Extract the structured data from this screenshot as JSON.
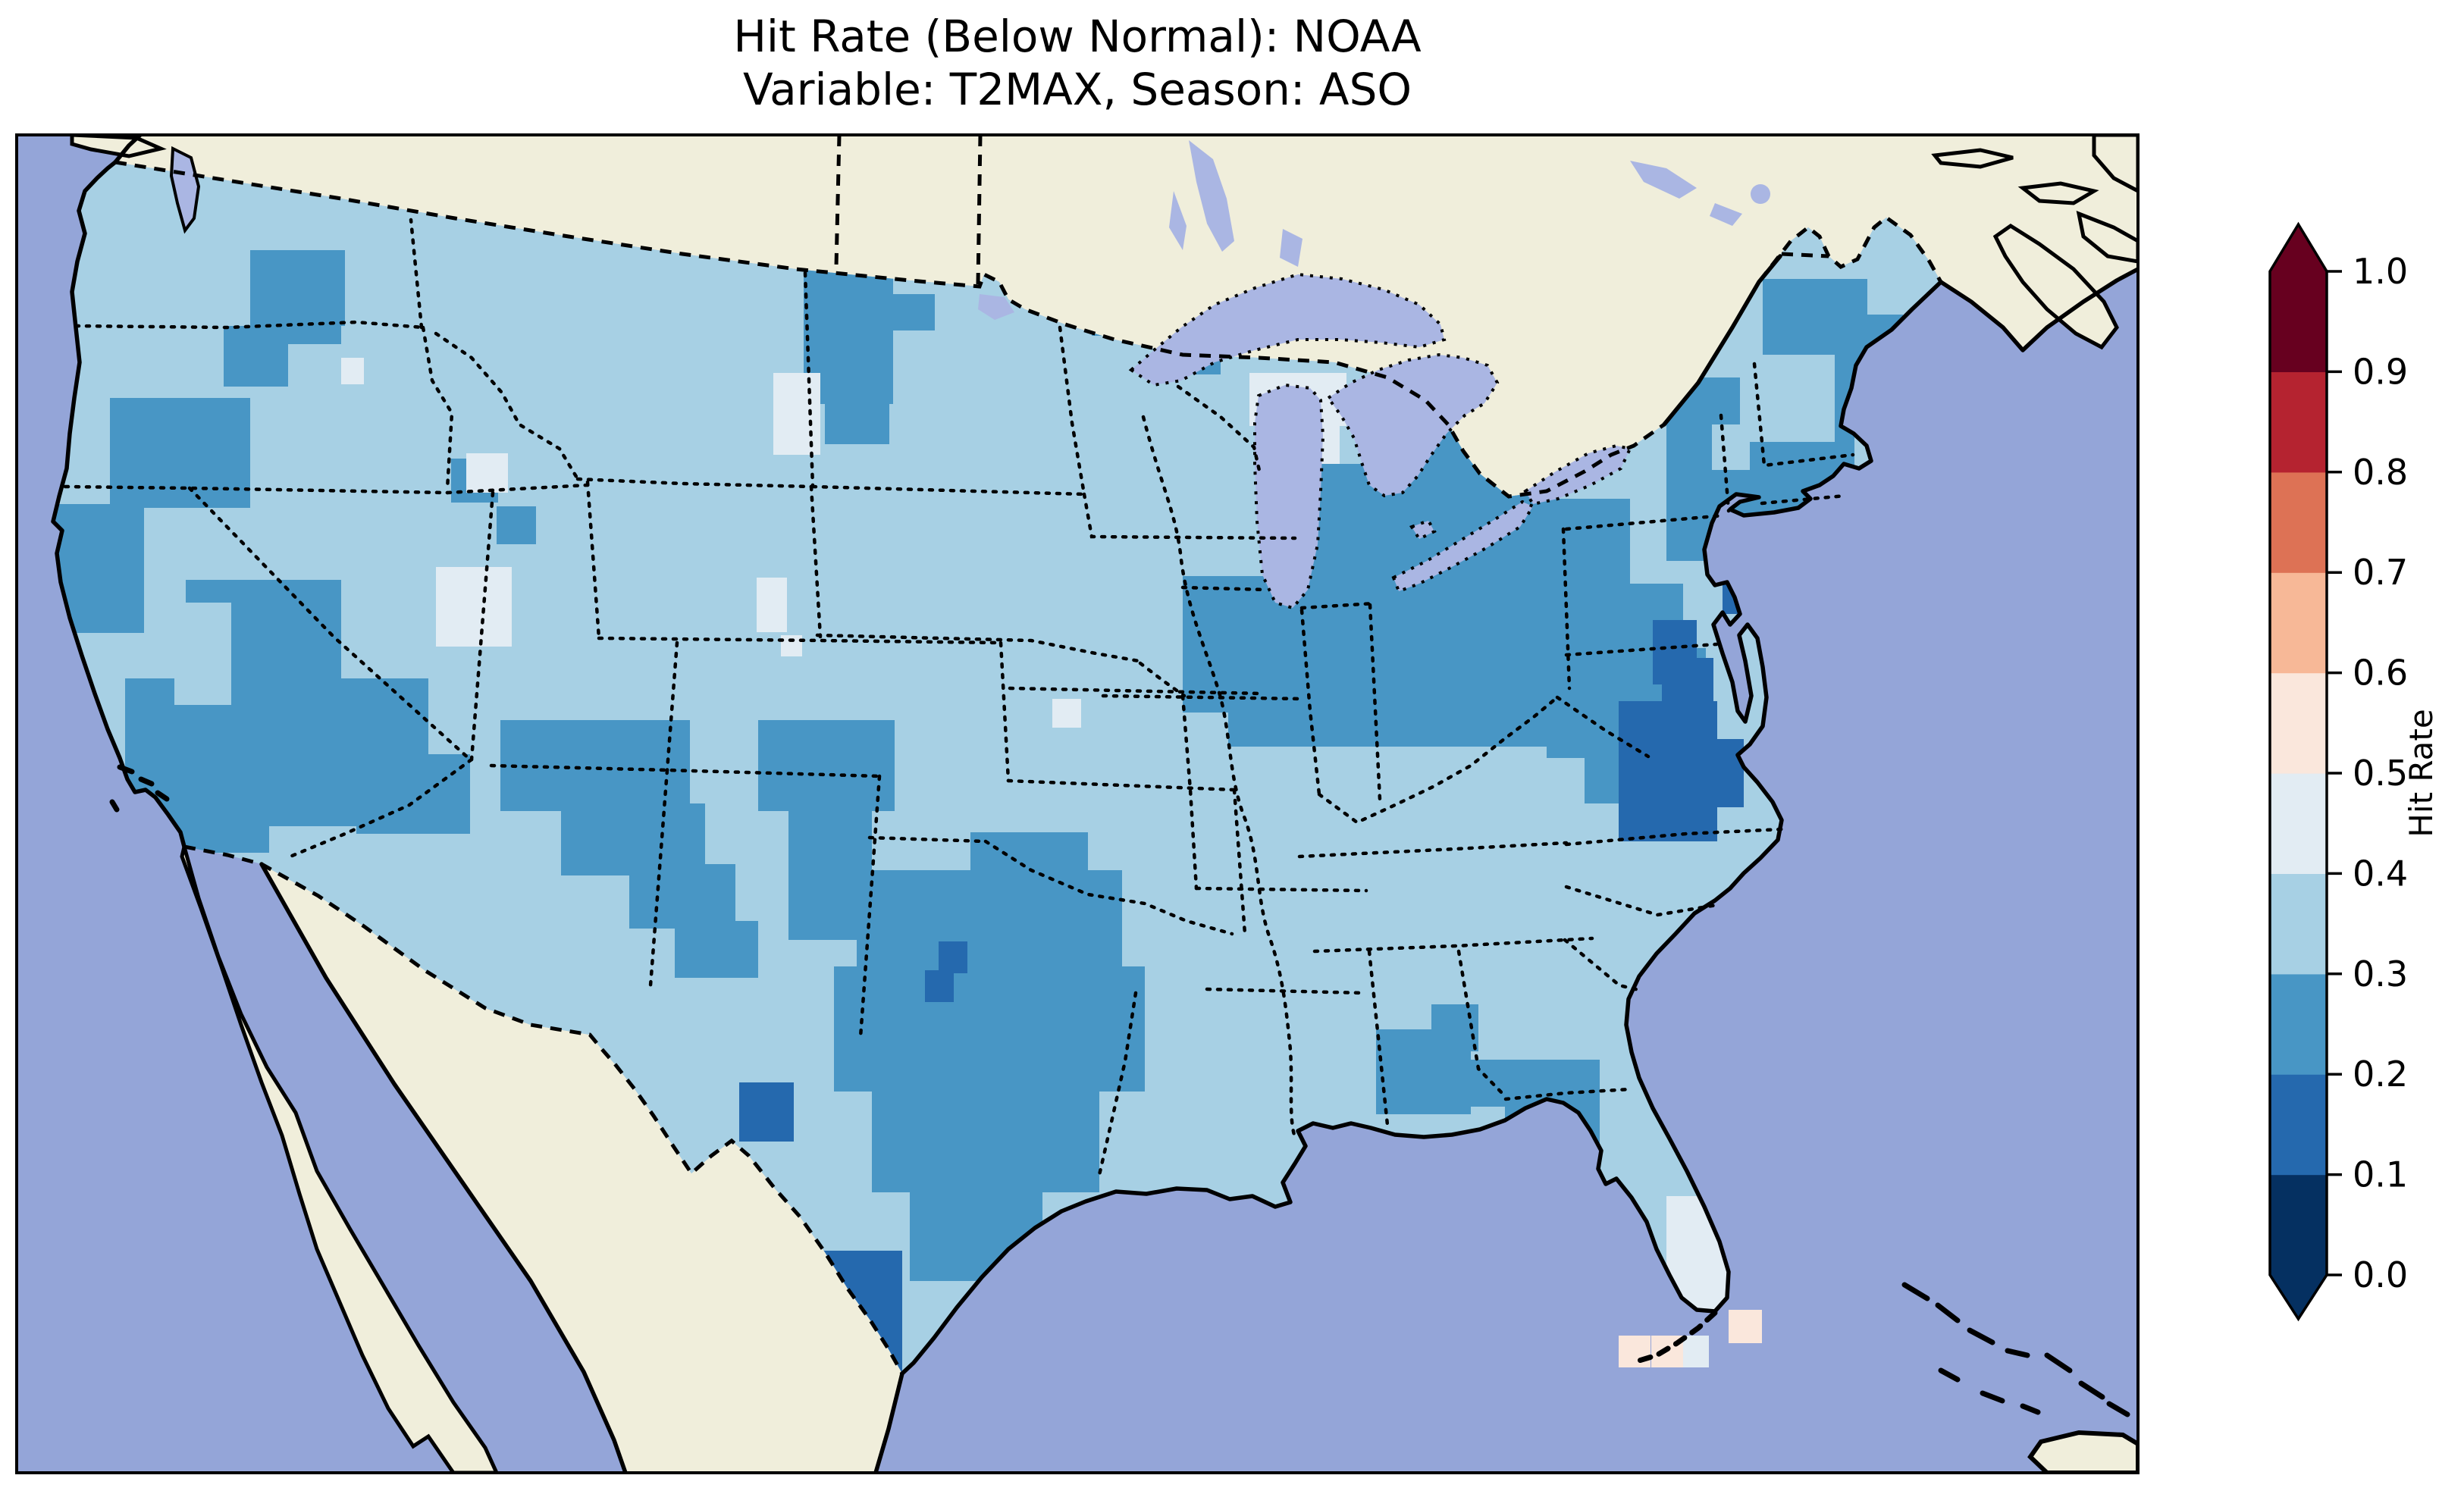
{
  "figure": {
    "title_line1": "Hit Rate (Below Normal): NOAA",
    "title_line2": "Variable: T2MAX, Season: ASO",
    "background": "#ffffff"
  },
  "map": {
    "colors": {
      "ocean": "#94a5d8",
      "lake": "#aab6e3",
      "foreign_land": "#f0eedb",
      "coastline": "#000000",
      "frame": "#000000",
      "base_us_bin": "#a7d0e4"
    }
  },
  "colorbar": {
    "label": "Hit Rate",
    "ticks": [
      "1.0",
      "0.9",
      "0.8",
      "0.7",
      "0.6",
      "0.5",
      "0.4",
      "0.3",
      "0.2",
      "0.1",
      "0.0"
    ],
    "extend": "both"
  },
  "chart_data": {
    "type": "heatmap",
    "subtype": "choropleth-map-conus",
    "title": "Hit Rate (Below Normal): NOAA",
    "subtitle": "Variable: T2MAX, Season: ASO",
    "metric": "Hit Rate (Below Normal)",
    "source": "NOAA",
    "variable": "T2MAX",
    "season": "ASO",
    "colorbar_label": "Hit Rate",
    "value_range": [
      0.0,
      1.0
    ],
    "colormap": {
      "name": "RdBu_r (10 discrete bins, extend both)",
      "levels": [
        0.0,
        0.1,
        0.2,
        0.3,
        0.4,
        0.5,
        0.6,
        0.7,
        0.8,
        0.9,
        1.0
      ],
      "bins": [
        {
          "range": "0.0-0.1",
          "color": "#053061"
        },
        {
          "range": "0.1-0.2",
          "color": "#2569ae"
        },
        {
          "range": "0.2-0.3",
          "color": "#4896c5"
        },
        {
          "range": "0.3-0.4",
          "color": "#a7d0e4"
        },
        {
          "range": "0.4-0.5",
          "color": "#e2ecf3"
        },
        {
          "range": "0.5-0.6",
          "color": "#fae7dc"
        },
        {
          "range": "0.6-0.7",
          "color": "#f7b897"
        },
        {
          "range": "0.7-0.8",
          "color": "#dd7255"
        },
        {
          "range": "0.8-0.9",
          "color": "#b52330"
        },
        {
          "range": "0.9-1.0",
          "color": "#67001f"
        }
      ],
      "under_color": "#053061",
      "over_color": "#67001f"
    },
    "region_values": [
      {
        "region": "Most of CONUS (base)",
        "hit_rate": "0.3-0.4"
      },
      {
        "region": "NE Washington / Idaho panhandle",
        "hit_rate": "0.2-0.3"
      },
      {
        "region": "SW Oregon / Northern California",
        "hit_rate": "0.2-0.3"
      },
      {
        "region": "Central & Southern California, S Nevada",
        "hit_rate": "0.2-0.3"
      },
      {
        "region": "Utah-Arizona border region",
        "hit_rate": "0.2-0.3"
      },
      {
        "region": "NE New Mexico / SE Colorado",
        "hit_rate": "0.2-0.3"
      },
      {
        "region": "Eastern Montana / W North Dakota",
        "hit_rate": "0.2-0.3"
      },
      {
        "region": "Great Plains (NE, KS, IA, MO)",
        "hit_rate": "0.3-0.4"
      },
      {
        "region": "Central & South Texas, S Oklahoma",
        "hit_rate": "0.2-0.3"
      },
      {
        "region": "Rio Grande Valley (S Texas tip), Big Bend",
        "hit_rate": "0.1-0.2"
      },
      {
        "region": "Ohio Valley, Appalachia, Mid-Atlantic, New England",
        "hit_rate": "0.2-0.3"
      },
      {
        "region": "Eastern Virginia / NE North Carolina, Chesapeake",
        "hit_rate": "0.1-0.2"
      },
      {
        "region": "Georgia-Alabama patches, Florida panhandle",
        "hit_rate": "0.2-0.3"
      },
      {
        "region": "South Florida peninsula",
        "hit_rate": "0.4-0.5"
      },
      {
        "region": "Florida Keys vicinity (offshore cells)",
        "hit_rate": "0.5-0.6"
      },
      {
        "region": "Scattered cells: MT/WY, NV/UT, upper Michigan",
        "hit_rate": "0.4-0.5"
      }
    ],
    "cells": [
      {
        "value_bin": "0.2-0.3",
        "rects": [
          [
            330,
            330,
            125,
            100
          ],
          [
            295,
            430,
            85,
            80
          ],
          [
            355,
            392,
            95,
            62
          ],
          [
            145,
            525,
            185,
            145
          ],
          [
            60,
            665,
            130,
            170
          ],
          [
            245,
            765,
            205,
            135
          ],
          [
            165,
            895,
            305,
            195
          ],
          [
            225,
            1055,
            130,
            70
          ],
          [
            380,
            895,
            185,
            145
          ],
          [
            470,
            995,
            150,
            105
          ],
          [
            660,
            950,
            250,
            120
          ],
          [
            740,
            1060,
            190,
            95
          ],
          [
            830,
            1140,
            140,
            85
          ],
          [
            890,
            1215,
            110,
            75
          ],
          [
            1000,
            950,
            180,
            120
          ],
          [
            1040,
            1070,
            110,
            170
          ],
          [
            1060,
            355,
            118,
            178
          ],
          [
            1088,
            528,
            85,
            58
          ],
          [
            1178,
            388,
            55,
            48
          ],
          [
            1440,
            388,
            105,
            55
          ],
          [
            1538,
            436,
            72,
            58
          ],
          [
            595,
            605,
            62,
            58
          ],
          [
            655,
            668,
            52,
            50
          ],
          [
            1280,
            1098,
            155,
            55
          ],
          [
            1130,
            1148,
            350,
            130
          ],
          [
            1100,
            1275,
            410,
            165
          ],
          [
            1150,
            1438,
            300,
            135
          ],
          [
            1200,
            1560,
            175,
            130
          ],
          [
            1398,
            1298,
            85,
            112
          ],
          [
            1700,
            612,
            450,
            160
          ],
          [
            1620,
            770,
            600,
            215
          ],
          [
            1560,
            760,
            130,
            180
          ],
          [
            1855,
            545,
            195,
            78
          ],
          [
            1905,
            680,
            80,
            90
          ],
          [
            2040,
            855,
            210,
            145
          ],
          [
            2090,
            995,
            170,
            65
          ],
          [
            2198,
            498,
            248,
            242
          ],
          [
            2325,
            368,
            138,
            165
          ],
          [
            2425,
            415,
            85,
            90
          ],
          [
            1815,
            1358,
            125,
            112
          ],
          [
            1888,
            1325,
            62,
            62
          ],
          [
            1928,
            1398,
            62,
            62
          ],
          [
            1985,
            1398,
            125,
            148
          ],
          [
            2228,
            1238,
            58,
            58
          ]
        ]
      },
      {
        "value_bin": "0.3-0.4",
        "rects": [
          [
            230,
            795,
            75,
            135
          ],
          [
            2295,
            468,
            125,
            115
          ],
          [
            2258,
            560,
            50,
            60
          ],
          [
            2040,
            558,
            145,
            100
          ]
        ]
      },
      {
        "value_bin": "0.1-0.2",
        "rects": [
          [
            2135,
            925,
            130,
            185
          ],
          [
            2192,
            868,
            68,
            72
          ],
          [
            2230,
            975,
            70,
            90
          ],
          [
            2180,
            818,
            58,
            85
          ],
          [
            2272,
            762,
            48,
            48
          ],
          [
            1040,
            1650,
            150,
            170
          ],
          [
            975,
            1428,
            72,
            78
          ],
          [
            1238,
            1242,
            38,
            42
          ],
          [
            1220,
            1280,
            38,
            42
          ]
        ]
      },
      {
        "value_bin": "0.4-0.5",
        "rects": [
          [
            1020,
            492,
            62,
            108
          ],
          [
            575,
            748,
            100,
            105
          ],
          [
            615,
            598,
            55,
            52
          ],
          [
            998,
            762,
            40,
            72
          ],
          [
            1030,
            838,
            28,
            28
          ],
          [
            450,
            472,
            30,
            35
          ],
          [
            1388,
            922,
            38,
            38
          ],
          [
            1648,
            492,
            128,
            70
          ],
          [
            1682,
            562,
            85,
            50
          ],
          [
            2198,
            1578,
            92,
            198
          ],
          [
            2146,
            1688,
            58,
            85
          ]
        ]
      },
      {
        "value_bin": "0.4-0.5",
        "offshore": true,
        "rects": [
          [
            2212,
            1762,
            42,
            42
          ]
        ]
      },
      {
        "value_bin": "0.5-0.6",
        "offshore": true,
        "rects": [
          [
            2135,
            1762,
            42,
            42
          ],
          [
            2178,
            1762,
            42,
            42
          ],
          [
            2280,
            1728,
            44,
            44
          ]
        ]
      }
    ]
  }
}
